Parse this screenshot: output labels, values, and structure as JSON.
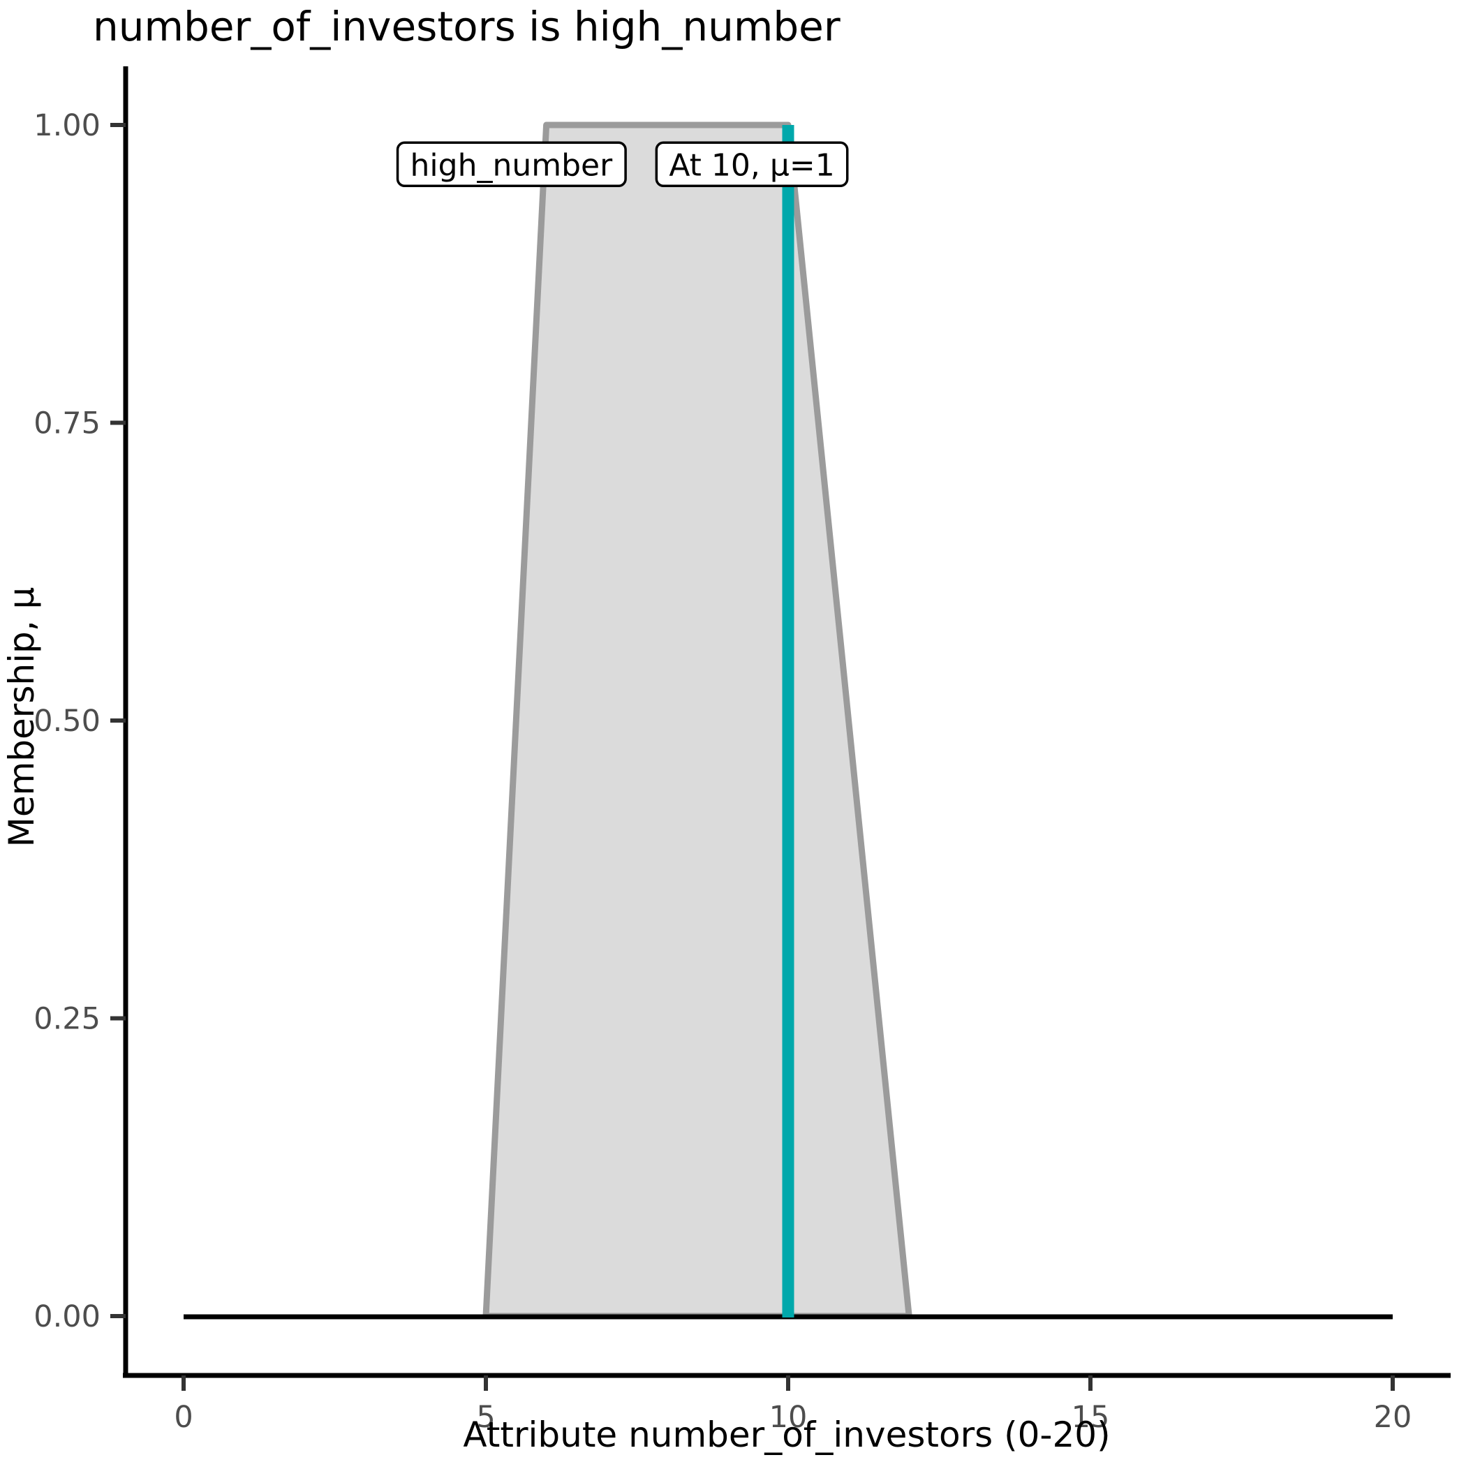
{
  "chart_data": {
    "type": "area",
    "title": "number_of_investors is high_number",
    "xlabel": "Attribute number_of_investors (0-20)",
    "ylabel": "Membership, μ",
    "xlim": [
      0,
      20
    ],
    "ylim": [
      0,
      1
    ],
    "grid": false,
    "x_ticks": [
      {
        "v": 0,
        "label": "0"
      },
      {
        "v": 5,
        "label": "5"
      },
      {
        "v": 10,
        "label": "10"
      },
      {
        "v": 15,
        "label": "15"
      },
      {
        "v": 20,
        "label": "20"
      }
    ],
    "y_ticks": [
      {
        "v": 0.0,
        "label": "0.00"
      },
      {
        "v": 0.25,
        "label": "0.25"
      },
      {
        "v": 0.5,
        "label": "0.50"
      },
      {
        "v": 0.75,
        "label": "0.75"
      },
      {
        "v": 1.0,
        "label": "1.00"
      }
    ],
    "series": [
      {
        "name": "high_number",
        "shape": "trapezoid",
        "points": [
          [
            5,
            0
          ],
          [
            6,
            1
          ],
          [
            10,
            1
          ],
          [
            12,
            0
          ]
        ]
      }
    ],
    "baseline": {
      "mu": 0,
      "x_from": 0,
      "x_to": 20
    },
    "marker": {
      "x": 10,
      "mu": 1
    },
    "annotations": [
      {
        "text": "high_number",
        "x": 5.42,
        "y": 0.967
      },
      {
        "text": "At 10, μ=1",
        "x": 9.4,
        "y": 0.967
      }
    ],
    "colors": {
      "area_fill": "#dbdbdb",
      "area_stroke": "#9b9b9b",
      "marker_line": "#00a8ab",
      "baseline": "#000000",
      "axis_line": "#000000",
      "tick_mark": "#333333",
      "tick_label": "#4d4d4d",
      "annotation_border": "#000000",
      "annotation_fill": "#ffffff"
    }
  }
}
